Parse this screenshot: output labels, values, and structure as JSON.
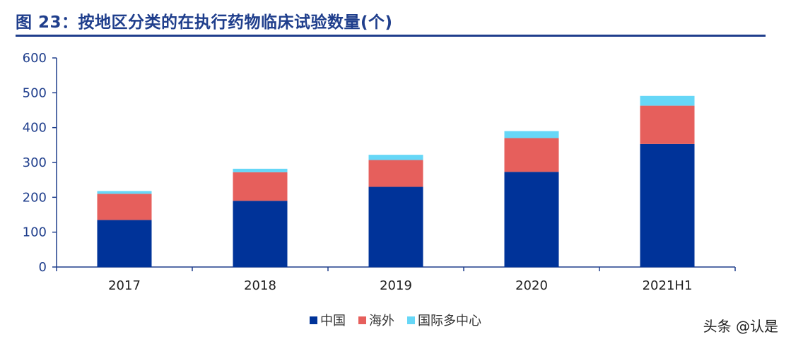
{
  "title": "图 23：按地区分类的在执行药物临床试验数量(个)",
  "watermark": "头条 @认是",
  "chart_data": {
    "type": "bar",
    "stacked": true,
    "categories": [
      "2017",
      "2018",
      "2019",
      "2020",
      "2021H1"
    ],
    "series": [
      {
        "name": "中国",
        "color": "#003399",
        "values": [
          135,
          190,
          230,
          273,
          353
        ]
      },
      {
        "name": "海外",
        "color": "#e65f5c",
        "values": [
          75,
          82,
          77,
          97,
          110
        ]
      },
      {
        "name": "国际多中心",
        "color": "#66d7f7",
        "values": [
          8,
          10,
          15,
          20,
          28
        ]
      }
    ],
    "ylim": [
      0,
      600
    ],
    "yticks": [
      0,
      100,
      200,
      300,
      400,
      500,
      600
    ],
    "xlabel": "",
    "ylabel": "",
    "grid": false,
    "legend": "bottom-center"
  }
}
